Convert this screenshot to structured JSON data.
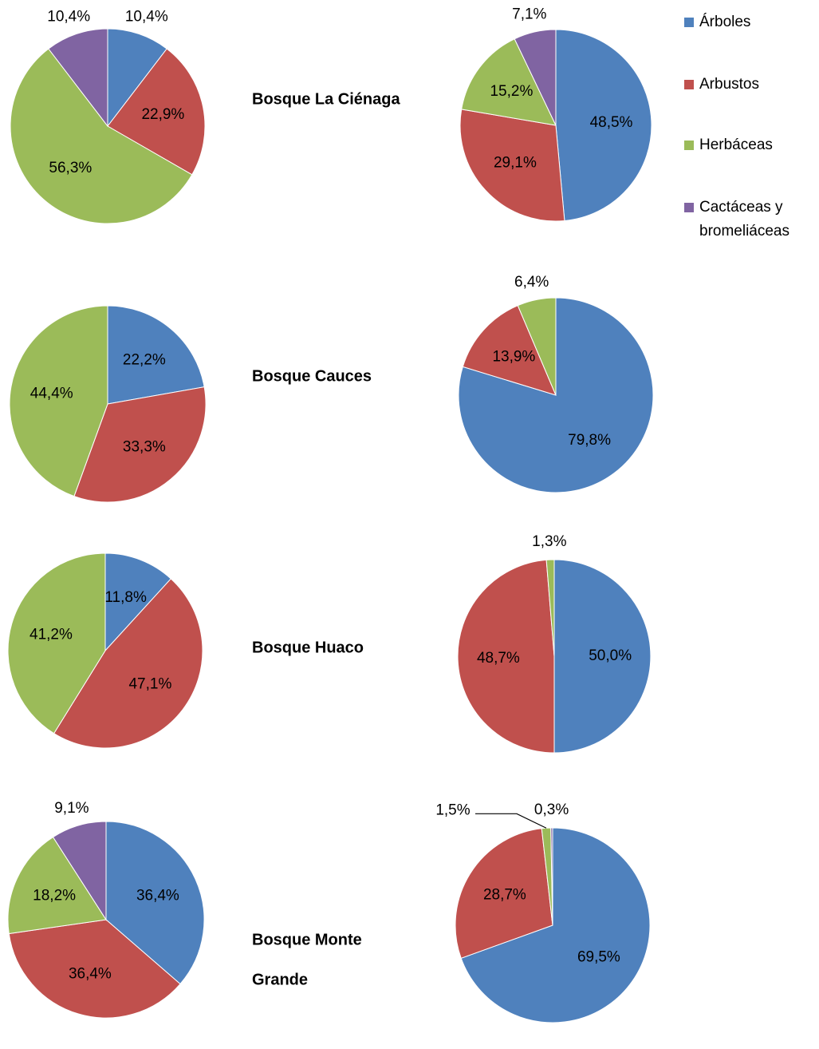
{
  "legend": [
    {
      "name": "Árboles",
      "color": "#4f81bd"
    },
    {
      "name": "Arbustos",
      "color": "#c0504d"
    },
    {
      "name": "Herbáceas",
      "color": "#9bbb59"
    },
    {
      "name": [
        "Cactáceas y",
        "bromeliáceas"
      ],
      "color": "#8064a2"
    }
  ],
  "rows": [
    {
      "label": [
        "Bosque La Ciénaga"
      ]
    },
    {
      "label": [
        "Bosque Cauces"
      ]
    },
    {
      "label": [
        "Bosque Huaco"
      ]
    },
    {
      "label": [
        "Bosque Monte",
        "Grande"
      ]
    }
  ],
  "chart_data": [
    {
      "type": "pie",
      "values": [
        10.4,
        22.9,
        56.3,
        10.4
      ],
      "value_labels": [
        "10,4%",
        "22,9%",
        "56,3%",
        "10,4%"
      ]
    },
    {
      "type": "pie",
      "values": [
        48.5,
        29.1,
        15.2,
        7.1
      ],
      "value_labels": [
        "48,5%",
        "29,1%",
        "15,2%",
        "7,1%"
      ]
    },
    {
      "type": "pie",
      "values": [
        22.2,
        33.3,
        44.4
      ],
      "value_labels": [
        "22,2%",
        "33,3%",
        "44,4%"
      ]
    },
    {
      "type": "pie",
      "values": [
        79.8,
        13.9,
        6.4
      ],
      "value_labels": [
        "79,8%",
        "13,9%",
        "6,4%"
      ]
    },
    {
      "type": "pie",
      "values": [
        11.8,
        47.1,
        41.2
      ],
      "value_labels": [
        "11,8%",
        "47,1%",
        "41,2%"
      ]
    },
    {
      "type": "pie",
      "values": [
        50.0,
        48.7,
        1.3
      ],
      "value_labels": [
        "50,0%",
        "48,7%",
        "1,3%"
      ]
    },
    {
      "type": "pie",
      "values": [
        36.4,
        36.4,
        18.2,
        9.1
      ],
      "value_labels": [
        "36,4%",
        "36,4%",
        "18,2%",
        "9,1%"
      ]
    },
    {
      "type": "pie",
      "values": [
        69.5,
        28.7,
        1.5,
        0.3
      ],
      "value_labels": [
        "69,5%",
        "28,7%",
        "1,5%",
        "0,3%"
      ]
    }
  ]
}
